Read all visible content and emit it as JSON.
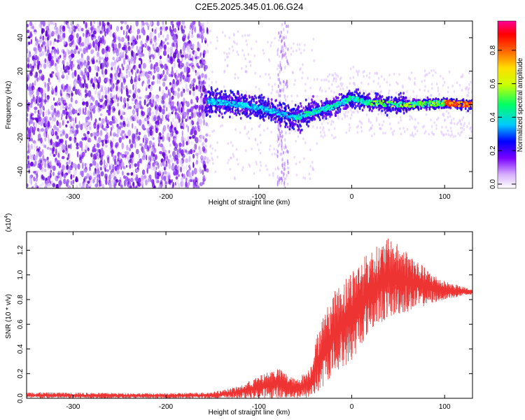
{
  "figure": {
    "title": "C2E5.2025.345.01.06.G24"
  },
  "chart_data": [
    {
      "type": "heatmap",
      "xlabel": "Height of straight line (km)",
      "ylabel": "Frequency (Hz)",
      "xlim": [
        -350,
        130
      ],
      "ylim": [
        -50,
        50
      ],
      "xticks": [
        -300,
        -200,
        -100,
        0,
        100
      ],
      "yticks": [
        -40,
        -20,
        0,
        20,
        40
      ],
      "grid": false,
      "colorbar": {
        "label": "Normalized spectral amplitude",
        "range": [
          0.0,
          1.0
        ],
        "ticks": [
          "0.0",
          "0.2",
          "0.4",
          "0.6",
          "0.8"
        ],
        "colors": [
          "#ffffff",
          "#cc99ff",
          "#7a00ff",
          "#0000ff",
          "#00ffff",
          "#00ff00",
          "#ffff00",
          "#ff8000",
          "#ff0000",
          "#ff00aa"
        ]
      },
      "noise_region": {
        "x_range": [
          -350,
          -155
        ],
        "freq_range": [
          -50,
          50
        ],
        "amplitude": 0.15
      },
      "trace_ridge": [
        {
          "x": -155,
          "f": 2
        },
        {
          "x": -120,
          "f": 0
        },
        {
          "x": -90,
          "f": -3
        },
        {
          "x": -60,
          "f": -8
        },
        {
          "x": -40,
          "f": -4
        },
        {
          "x": -20,
          "f": -1
        },
        {
          "x": 0,
          "f": 4
        },
        {
          "x": 20,
          "f": 1
        },
        {
          "x": 60,
          "f": 0
        },
        {
          "x": 100,
          "f": 1
        },
        {
          "x": 130,
          "f": 0
        }
      ]
    },
    {
      "type": "line",
      "xlabel": "Height of straight line (km)",
      "ylabel": "SNR (10 * v/v)",
      "yscale_label": "(x10",
      "yscale_exponent": "4",
      "xlim": [
        -350,
        130
      ],
      "ylim": [
        0,
        1.35
      ],
      "xticks": [
        -300,
        -200,
        -100,
        0,
        100
      ],
      "yticks": [
        "0.0",
        "0.2",
        "0.4",
        "0.6",
        "0.8",
        "1.0",
        "1.2"
      ],
      "grid": false,
      "line_color": "#ee3333",
      "envelope": [
        {
          "x": -350,
          "lo": 0.0,
          "hi": 0.05
        },
        {
          "x": -200,
          "lo": 0.0,
          "hi": 0.04
        },
        {
          "x": -150,
          "lo": 0.0,
          "hi": 0.05
        },
        {
          "x": -120,
          "lo": 0.0,
          "hi": 0.1
        },
        {
          "x": -100,
          "lo": 0.0,
          "hi": 0.18
        },
        {
          "x": -80,
          "lo": 0.0,
          "hi": 0.25
        },
        {
          "x": -60,
          "lo": 0.0,
          "hi": 0.15
        },
        {
          "x": -45,
          "lo": 0.0,
          "hi": 0.25
        },
        {
          "x": -35,
          "lo": 0.05,
          "hi": 0.6
        },
        {
          "x": -20,
          "lo": 0.2,
          "hi": 0.85
        },
        {
          "x": 0,
          "lo": 0.3,
          "hi": 1.05
        },
        {
          "x": 20,
          "lo": 0.55,
          "hi": 1.2
        },
        {
          "x": 40,
          "lo": 0.65,
          "hi": 1.3
        },
        {
          "x": 60,
          "lo": 0.7,
          "hi": 1.2
        },
        {
          "x": 80,
          "lo": 0.75,
          "hi": 1.05
        },
        {
          "x": 100,
          "lo": 0.8,
          "hi": 0.95
        },
        {
          "x": 130,
          "lo": 0.84,
          "hi": 0.88
        }
      ]
    }
  ]
}
